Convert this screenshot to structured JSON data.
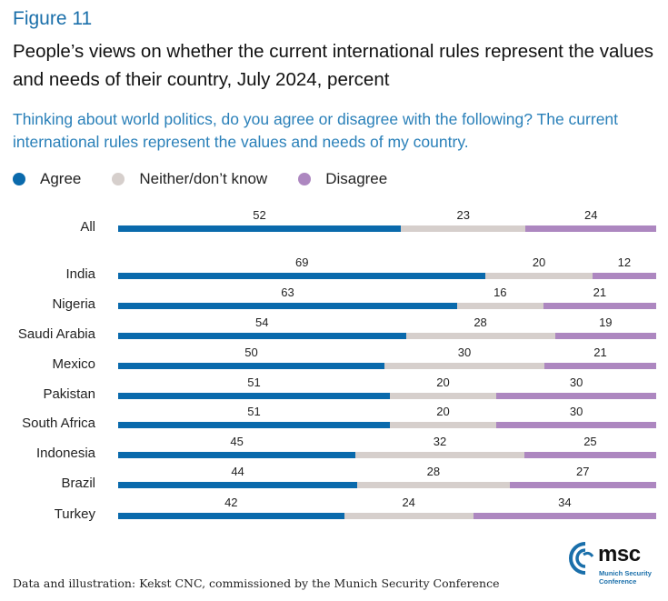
{
  "figure_label": "Figure 11",
  "title": "People’s views on whether the current international rules represent the values and needs of their country, July 2024, percent",
  "question": "Thinking about world politics, do you agree or disagree with the following? The current international rules represent the values and needs of my country.",
  "footer": "Data and illustration: Kekst CNC, commissioned by the Munich Security Conference",
  "logo": {
    "name": "msc",
    "sub_line1": "Munich Security",
    "sub_line2": "Conference",
    "icon": "msc-logo-icon"
  },
  "colors": {
    "agree": "#0a6aac",
    "neither": "#d6cfcc",
    "disagree": "#ad87c0",
    "accent": "#1a6faa"
  },
  "chart_data": {
    "type": "bar",
    "orientation": "horizontal",
    "stacked": true,
    "title": "People’s views on whether the current international rules represent the values and needs of their country, July 2024, percent",
    "xlabel": "",
    "ylabel": "",
    "xlim": [
      0,
      100
    ],
    "grid": false,
    "legend_position": "top-left",
    "legend": [
      "Agree",
      "Neither/don’t know",
      "Disagree"
    ],
    "categories": [
      "All",
      "India",
      "Nigeria",
      "Saudi Arabia",
      "Mexico",
      "Pakistan",
      "South Africa",
      "Indonesia",
      "Brazil",
      "Turkey"
    ],
    "series": [
      {
        "name": "Agree",
        "values": [
          52,
          69,
          63,
          54,
          50,
          51,
          51,
          45,
          44,
          42
        ]
      },
      {
        "name": "Neither/don’t know",
        "values": [
          23,
          20,
          16,
          28,
          30,
          20,
          20,
          32,
          28,
          24
        ]
      },
      {
        "name": "Disagree",
        "values": [
          24,
          12,
          21,
          19,
          21,
          30,
          30,
          25,
          27,
          34
        ]
      }
    ]
  }
}
